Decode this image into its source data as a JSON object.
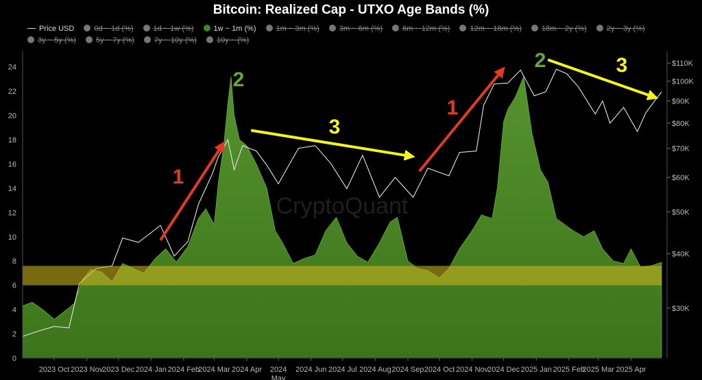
{
  "chart_data": {
    "type": "area",
    "title": "Bitcoin: Realized Cap - UTXO Age Bands (%)",
    "legend": [
      {
        "label": "Price USD",
        "state": "active",
        "kind": "line"
      },
      {
        "label": "0d ~ 1d (%)",
        "state": "hidden"
      },
      {
        "label": "1d ~ 1w (%)",
        "state": "hidden"
      },
      {
        "label": "1w ~ 1m (%)",
        "state": "active"
      },
      {
        "label": "1m ~ 3m (%)",
        "state": "hidden"
      },
      {
        "label": "3m ~ 6m (%)",
        "state": "hidden"
      },
      {
        "label": "6m ~ 12m (%)",
        "state": "hidden"
      },
      {
        "label": "12m ~ 18m (%)",
        "state": "hidden"
      },
      {
        "label": "18m ~ 2y (%)",
        "state": "hidden"
      },
      {
        "label": "2y ~ 3y (%)",
        "state": "hidden"
      },
      {
        "label": "3y ~ 5y (%)",
        "state": "hidden"
      },
      {
        "label": "5y ~ 7y (%)",
        "state": "hidden"
      },
      {
        "label": "7y ~ 10y (%)",
        "state": "hidden"
      },
      {
        "label": "10y ~ (%)",
        "state": "hidden"
      }
    ],
    "x_ticks": [
      "2023 Oct",
      "2023 Nov",
      "2023 Dec",
      "2024 Jan",
      "2024 Feb",
      "2024 Mar",
      "2024 Apr",
      "2024 May",
      "2024 Jun",
      "2024 Jul",
      "2024 Aug",
      "2024 Sep",
      "2024 Oct",
      "2024 Nov",
      "2024 Dec",
      "2025 Jan",
      "2025 Feb",
      "2025 Mar",
      "2025 Apr"
    ],
    "x_range": [
      "2023-09-01",
      "2025-04-30"
    ],
    "y_left": {
      "ticks": [
        0,
        2,
        4,
        6,
        8,
        10,
        12,
        14,
        16,
        18,
        20,
        22,
        24
      ],
      "range": [
        0,
        25
      ]
    },
    "y_right": {
      "scale": "log",
      "ticks": [
        "$30K",
        "$40K",
        "$50K",
        "$60K",
        "$70K",
        "$80K",
        "$90K",
        "$100K",
        "$110K"
      ],
      "tick_values": [
        30000,
        40000,
        50000,
        60000,
        70000,
        80000,
        90000,
        100000,
        110000
      ],
      "range": [
        23000,
        115000
      ]
    },
    "grid": false,
    "legend_placement": "top",
    "series": [
      {
        "name": "1w ~ 1m (%)",
        "axis": "left",
        "color": "#4d8a2a",
        "points": [
          [
            "2023-09-01",
            4.3
          ],
          [
            "2023-09-10",
            4.6
          ],
          [
            "2023-09-20",
            4.0
          ],
          [
            "2023-10-01",
            3.2
          ],
          [
            "2023-10-10",
            3.8
          ],
          [
            "2023-10-20",
            4.5
          ],
          [
            "2023-10-28",
            6.5
          ],
          [
            "2023-11-05",
            7.3
          ],
          [
            "2023-11-15",
            7.1
          ],
          [
            "2023-11-25",
            6.3
          ],
          [
            "2023-12-05",
            7.8
          ],
          [
            "2023-12-15",
            7.4
          ],
          [
            "2023-12-25",
            7.0
          ],
          [
            "2024-01-05",
            8.2
          ],
          [
            "2024-01-15",
            9.0
          ],
          [
            "2024-01-25",
            7.9
          ],
          [
            "2024-02-05",
            9.2
          ],
          [
            "2024-02-15",
            11.5
          ],
          [
            "2024-02-22",
            12.3
          ],
          [
            "2024-03-01",
            11.0
          ],
          [
            "2024-03-05",
            14.5
          ],
          [
            "2024-03-10",
            17.5
          ],
          [
            "2024-03-14",
            21.0
          ],
          [
            "2024-03-17",
            23.2
          ],
          [
            "2024-03-20",
            20.0
          ],
          [
            "2024-03-25",
            18.0
          ],
          [
            "2024-04-01",
            17.5
          ],
          [
            "2024-04-10",
            16.0
          ],
          [
            "2024-04-20",
            14.0
          ],
          [
            "2024-04-28",
            10.5
          ],
          [
            "2024-05-05",
            9.5
          ],
          [
            "2024-05-15",
            7.8
          ],
          [
            "2024-05-25",
            8.2
          ],
          [
            "2024-06-05",
            8.5
          ],
          [
            "2024-06-15",
            10.5
          ],
          [
            "2024-06-25",
            11.6
          ],
          [
            "2024-07-05",
            9.5
          ],
          [
            "2024-07-15",
            8.4
          ],
          [
            "2024-07-25",
            7.9
          ],
          [
            "2024-08-05",
            9.5
          ],
          [
            "2024-08-15",
            11.2
          ],
          [
            "2024-08-22",
            11.6
          ],
          [
            "2024-09-01",
            8.0
          ],
          [
            "2024-09-10",
            7.4
          ],
          [
            "2024-09-20",
            7.2
          ],
          [
            "2024-10-01",
            6.6
          ],
          [
            "2024-10-10",
            7.4
          ],
          [
            "2024-10-20",
            9.0
          ],
          [
            "2024-11-01",
            10.5
          ],
          [
            "2024-11-10",
            11.8
          ],
          [
            "2024-11-20",
            11.5
          ],
          [
            "2024-11-25",
            14.0
          ],
          [
            "2024-12-01",
            19.5
          ],
          [
            "2024-12-05",
            20.5
          ],
          [
            "2024-12-12",
            21.5
          ],
          [
            "2024-12-20",
            23.2
          ],
          [
            "2024-12-28",
            18.5
          ],
          [
            "2025-01-05",
            15.5
          ],
          [
            "2025-01-12",
            14.5
          ],
          [
            "2025-01-20",
            11.5
          ],
          [
            "2025-01-28",
            11.0
          ],
          [
            "2025-02-05",
            10.5
          ],
          [
            "2025-02-15",
            10.0
          ],
          [
            "2025-02-25",
            10.5
          ],
          [
            "2025-03-05",
            9.0
          ],
          [
            "2025-03-15",
            8.0
          ],
          [
            "2025-03-25",
            7.8
          ],
          [
            "2025-04-01",
            9.0
          ],
          [
            "2025-04-10",
            7.5
          ],
          [
            "2025-04-20",
            7.6
          ],
          [
            "2025-04-30",
            7.9
          ]
        ]
      },
      {
        "name": "Price USD",
        "axis": "right",
        "color": "#e6e6e6",
        "points": [
          [
            "2023-09-01",
            25800
          ],
          [
            "2023-09-15",
            26500
          ],
          [
            "2023-10-01",
            27200
          ],
          [
            "2023-10-15",
            27000
          ],
          [
            "2023-10-25",
            34200
          ],
          [
            "2023-11-10",
            37000
          ],
          [
            "2023-11-25",
            37500
          ],
          [
            "2023-12-05",
            43500
          ],
          [
            "2023-12-20",
            42500
          ],
          [
            "2024-01-10",
            46500
          ],
          [
            "2024-01-23",
            39500
          ],
          [
            "2024-02-05",
            42700
          ],
          [
            "2024-02-15",
            52000
          ],
          [
            "2024-02-28",
            61000
          ],
          [
            "2024-03-05",
            67000
          ],
          [
            "2024-03-14",
            73200
          ],
          [
            "2024-03-20",
            62500
          ],
          [
            "2024-03-28",
            71000
          ],
          [
            "2024-04-10",
            69000
          ],
          [
            "2024-04-20",
            64000
          ],
          [
            "2024-05-01",
            58000
          ],
          [
            "2024-05-20",
            70000
          ],
          [
            "2024-06-05",
            71000
          ],
          [
            "2024-06-20",
            64500
          ],
          [
            "2024-07-05",
            56500
          ],
          [
            "2024-07-20",
            67500
          ],
          [
            "2024-08-05",
            54000
          ],
          [
            "2024-08-20",
            60000
          ],
          [
            "2024-09-06",
            54000
          ],
          [
            "2024-09-20",
            63000
          ],
          [
            "2024-10-10",
            60500
          ],
          [
            "2024-10-20",
            68500
          ],
          [
            "2024-11-05",
            69000
          ],
          [
            "2024-11-12",
            88000
          ],
          [
            "2024-11-22",
            98500
          ],
          [
            "2024-12-05",
            99000
          ],
          [
            "2024-12-17",
            106000
          ],
          [
            "2024-12-30",
            92500
          ],
          [
            "2025-01-10",
            94500
          ],
          [
            "2025-01-20",
            106500
          ],
          [
            "2025-01-30",
            104000
          ],
          [
            "2025-02-10",
            97000
          ],
          [
            "2025-02-26",
            84000
          ],
          [
            "2025-03-05",
            90000
          ],
          [
            "2025-03-12",
            80000
          ],
          [
            "2025-03-25",
            87000
          ],
          [
            "2025-04-07",
            76500
          ],
          [
            "2025-04-15",
            84500
          ],
          [
            "2025-04-30",
            94500
          ]
        ]
      }
    ],
    "annotations": [
      {
        "type": "band",
        "axis": "left",
        "y_range": [
          6,
          7.6
        ],
        "color": "#c8b020"
      },
      {
        "type": "arrow",
        "color": "#e23b22",
        "from": [
          "2024-01-10",
          43000
        ],
        "to": [
          "2024-03-10",
          72000
        ]
      },
      {
        "type": "arrow",
        "color": "#f5f51e",
        "from": [
          "2024-04-05",
          77000
        ],
        "to": [
          "2024-09-06",
          67000
        ]
      },
      {
        "type": "arrow",
        "color": "#e23b22",
        "from": [
          "2024-09-12",
          62000
        ],
        "to": [
          "2024-12-01",
          107000
        ]
      },
      {
        "type": "arrow",
        "color": "#f5f51e",
        "from": [
          "2025-01-12",
          112000
        ],
        "to": [
          "2025-04-25",
          91500
        ]
      }
    ],
    "labels": [
      {
        "text": "1",
        "color": "#e23b22"
      },
      {
        "text": "2",
        "color": "#6aa63a"
      },
      {
        "text": "3",
        "color": "#f5f51e"
      },
      {
        "text": "1",
        "color": "#e23b22"
      },
      {
        "text": "2",
        "color": "#6aa63a"
      },
      {
        "text": "3",
        "color": "#f5f51e"
      }
    ],
    "watermark": "CryptoQuant"
  }
}
